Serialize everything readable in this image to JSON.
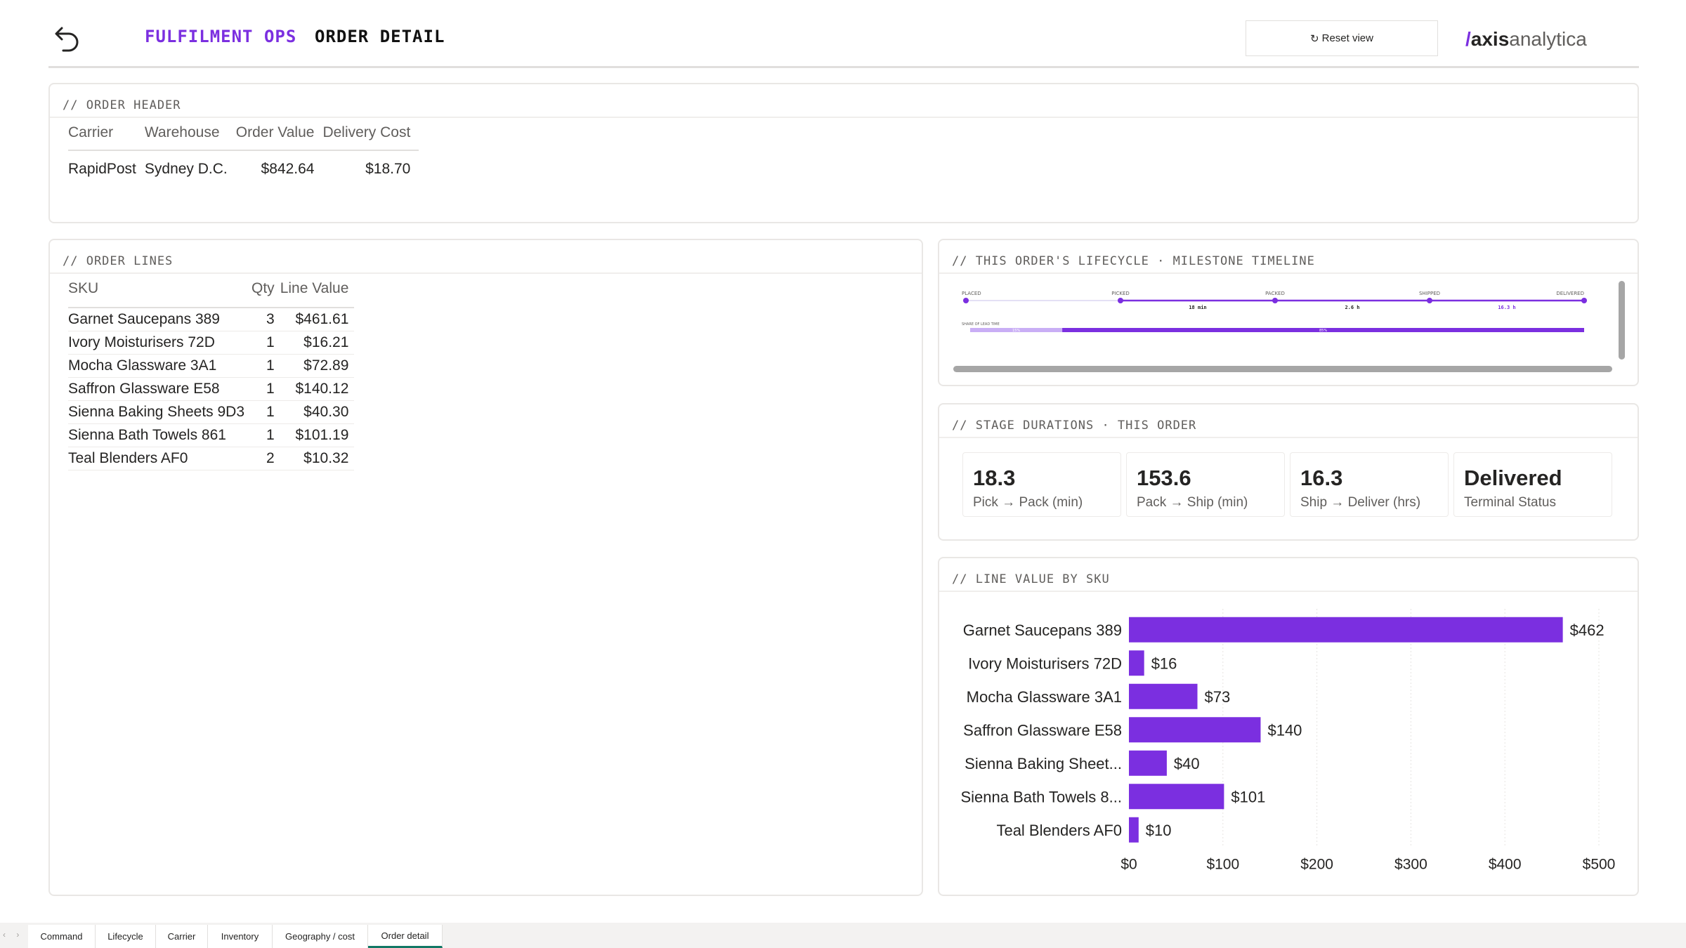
{
  "header": {
    "brand": "FULFILMENT OPS",
    "page_name": "ORDER DETAIL",
    "reset_label": "Reset view",
    "reset_icon": "↻",
    "logo": {
      "slash": "/",
      "axis": "axis",
      "rest": "analytica"
    }
  },
  "order_header": {
    "title": "// ORDER HEADER",
    "columns": [
      "Carrier",
      "Warehouse",
      "Order Value",
      "Delivery Cost"
    ],
    "row": [
      "RapidPost",
      "Sydney D.C.",
      "$842.64",
      "$18.70"
    ]
  },
  "order_lines": {
    "title": "// ORDER LINES",
    "columns": [
      "SKU",
      "Qty",
      "Line Value"
    ],
    "rows": [
      [
        "Garnet Saucepans 389",
        "3",
        "$461.61"
      ],
      [
        "Ivory Moisturisers 72D",
        "1",
        "$16.21"
      ],
      [
        "Mocha Glassware 3A1",
        "1",
        "$72.89"
      ],
      [
        "Saffron Glassware E58",
        "1",
        "$140.12"
      ],
      [
        "Sienna Baking Sheets 9D3",
        "1",
        "$40.30"
      ],
      [
        "Sienna Bath Towels 861",
        "1",
        "$101.19"
      ],
      [
        "Teal Blenders AF0",
        "2",
        "$10.32"
      ]
    ]
  },
  "lifecycle": {
    "title": "// THIS ORDER'S LIFECYCLE · MILESTONE TIMELINE",
    "milestones": [
      "PLACED",
      "PICKED",
      "PACKED",
      "SHIPPED",
      "DELIVERED"
    ],
    "durations": [
      "",
      "18 min",
      "2.6 h",
      "16.3 h"
    ],
    "share_label": "SHARE OF LEAD TIME",
    "share_segments": [
      {
        "label": "15%",
        "share": 15,
        "color": "#c9aef5"
      },
      {
        "label": "85%",
        "share": 85,
        "color": "#7b2fe0"
      }
    ]
  },
  "stage_durations": {
    "title": "// STAGE DURATIONS · THIS ORDER",
    "cards": [
      {
        "value": "18.3",
        "label": "Pick → Pack (min)"
      },
      {
        "value": "153.6",
        "label": "Pack → Ship (min)"
      },
      {
        "value": "16.3",
        "label": "Ship → Deliver (hrs)"
      },
      {
        "value": "Delivered",
        "label": "Terminal Status"
      }
    ]
  },
  "line_value_chart": {
    "title": "// LINE VALUE BY SKU"
  },
  "chart_data": {
    "type": "bar",
    "orientation": "horizontal",
    "categories": [
      "Garnet Saucepans 389",
      "Ivory Moisturisers 72D",
      "Mocha Glassware 3A1",
      "Saffron Glassware E58",
      "Sienna Baking Sheet...",
      "Sienna Bath Towels 8...",
      "Teal Blenders AF0"
    ],
    "values": [
      461.61,
      16.21,
      72.89,
      140.12,
      40.3,
      101.19,
      10.32
    ],
    "data_labels": [
      "$462",
      "$16",
      "$73",
      "$140",
      "$40",
      "$101",
      "$10"
    ],
    "xlim": [
      0,
      500
    ],
    "x_ticks": [
      0,
      100,
      200,
      300,
      400,
      500
    ],
    "x_tick_labels": [
      "$0",
      "$100",
      "$200",
      "$300",
      "$400",
      "$500"
    ],
    "bar_color": "#7b2fe0",
    "grid": true,
    "legend": "none"
  },
  "tabs": {
    "arrows": "‹ ›",
    "items": [
      "Command",
      "Lifecycle",
      "Carrier",
      "Inventory",
      "Geography / cost",
      "Order detail"
    ],
    "active": "Order detail"
  }
}
